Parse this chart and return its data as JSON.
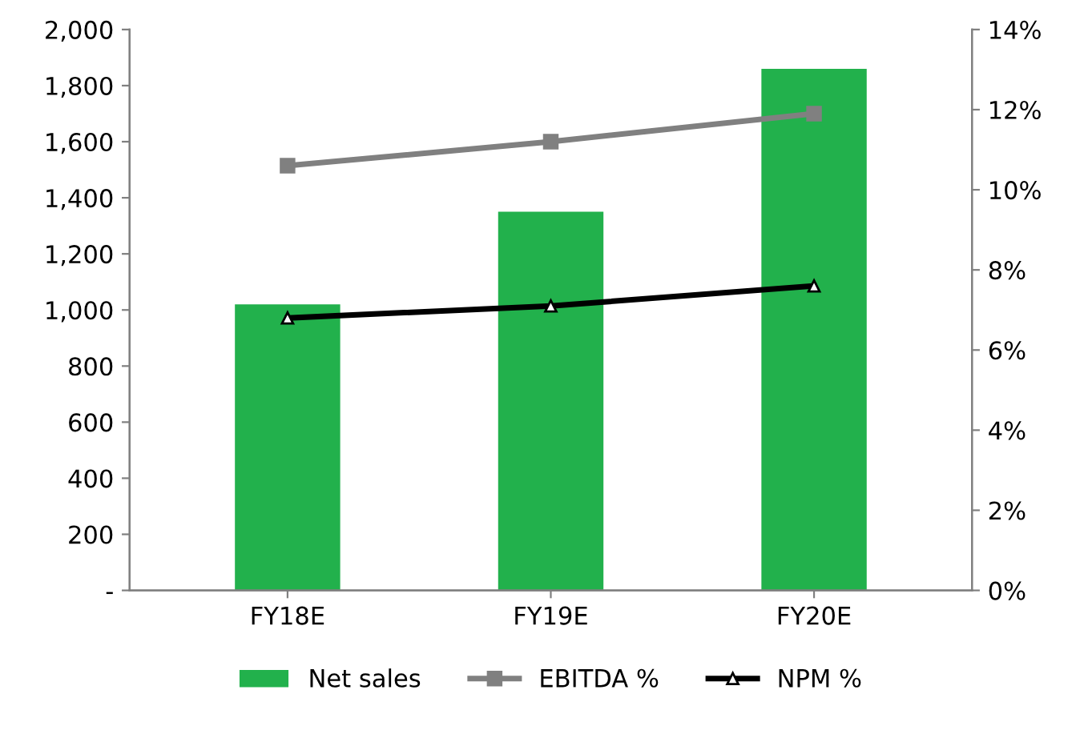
{
  "chart_data": {
    "type": "bar",
    "categories": [
      "FY18E",
      "FY19E",
      "FY20E"
    ],
    "series": [
      {
        "name": "Net sales",
        "color": "#22b14c",
        "values": [
          1020,
          1350,
          1860
        ]
      },
      {
        "name": "EBITDA %",
        "type": "line",
        "axis": "y2",
        "color": "#808080",
        "marker": "square",
        "values": [
          10.6,
          11.2,
          11.9
        ]
      },
      {
        "name": "NPM %",
        "type": "line",
        "axis": "y2",
        "color": "#000000",
        "marker": "triangle",
        "values": [
          6.8,
          7.1,
          7.6
        ]
      }
    ],
    "ylim": [
      0,
      2000
    ],
    "yticks": [
      {
        "value": 0,
        "label": "-"
      },
      {
        "value": 200,
        "label": "200"
      },
      {
        "value": 400,
        "label": "400"
      },
      {
        "value": 600,
        "label": "600"
      },
      {
        "value": 800,
        "label": "800"
      },
      {
        "value": 1000,
        "label": "1,000"
      },
      {
        "value": 1200,
        "label": "1,200"
      },
      {
        "value": 1400,
        "label": "1,400"
      },
      {
        "value": 1600,
        "label": "1,600"
      },
      {
        "value": 1800,
        "label": "1,800"
      },
      {
        "value": 2000,
        "label": "2,000"
      }
    ],
    "y2lim": [
      0,
      14
    ],
    "y2ticks": [
      {
        "value": 0,
        "label": "0%"
      },
      {
        "value": 2,
        "label": "2%"
      },
      {
        "value": 4,
        "label": "4%"
      },
      {
        "value": 6,
        "label": "6%"
      },
      {
        "value": 8,
        "label": "8%"
      },
      {
        "value": 10,
        "label": "10%"
      },
      {
        "value": 12,
        "label": "12%"
      },
      {
        "value": 14,
        "label": "14%"
      }
    ],
    "grid": false,
    "legend": "bottom",
    "line_style": "solid"
  }
}
